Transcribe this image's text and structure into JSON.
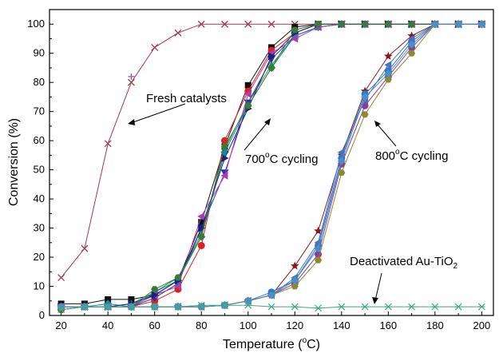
{
  "chart_data": {
    "type": "line",
    "xlabel": {
      "pre": "Temperature (",
      "sup": "o",
      "post": "C)"
    },
    "ylabel": "Conversion (%)",
    "xlim": [
      15,
      205
    ],
    "ylim": [
      0,
      105
    ],
    "xticks": [
      20,
      40,
      60,
      80,
      100,
      120,
      140,
      160,
      180,
      200
    ],
    "yticks": [
      0,
      10,
      20,
      30,
      40,
      50,
      60,
      70,
      80,
      90,
      100
    ],
    "grid": false,
    "legend": "none",
    "series": [
      {
        "color": "#a0384f",
        "marker": "x",
        "x": [
          20,
          30,
          40,
          50,
          60,
          70,
          80,
          90,
          100,
          110,
          120,
          130,
          140,
          150,
          160,
          170,
          180,
          190,
          200
        ],
        "values": [
          13,
          23,
          59,
          80,
          92,
          97,
          100,
          100,
          100,
          100,
          100,
          100,
          100,
          100,
          100,
          100,
          100,
          100,
          100
        ]
      },
      {
        "color": "#9b4f9b",
        "marker": "plus",
        "x": [
          50
        ],
        "values": [
          82
        ]
      },
      {
        "color": "#111111",
        "marker": "square",
        "x": [
          20,
          30,
          40,
          50,
          60,
          70,
          80,
          90,
          100,
          110,
          120,
          130,
          140,
          150,
          160,
          170,
          180,
          190,
          200
        ],
        "values": [
          4,
          4,
          5.5,
          5.5,
          7,
          12,
          32,
          58,
          79,
          92,
          99,
          100,
          100,
          100,
          100,
          100,
          100,
          100,
          100
        ]
      },
      {
        "color": "#e02020",
        "marker": "circle",
        "x": [
          20,
          30,
          40,
          50,
          60,
          70,
          80,
          90,
          100,
          110,
          120,
          130,
          140,
          150,
          160,
          170,
          180,
          190,
          200
        ],
        "values": [
          2,
          3,
          3,
          3,
          5,
          9,
          24,
          60,
          77,
          91,
          97,
          100,
          100,
          100,
          100,
          100,
          100,
          100,
          100
        ]
      },
      {
        "color": "#2a9a3a",
        "marker": "triangle-up",
        "x": [
          20,
          30,
          40,
          50,
          60,
          70,
          80,
          90,
          100,
          110,
          120,
          130,
          140,
          150,
          160,
          170,
          180,
          190,
          200
        ],
        "values": [
          3,
          3,
          3,
          4,
          8,
          13,
          28,
          57,
          73,
          86,
          96,
          99,
          100,
          100,
          100,
          100,
          100,
          100,
          100
        ]
      },
      {
        "color": "#2233aa",
        "marker": "triangle-down",
        "x": [
          20,
          30,
          40,
          50,
          60,
          70,
          80,
          90,
          100,
          110,
          120,
          130,
          140,
          150,
          160,
          170,
          180,
          190,
          200
        ],
        "values": [
          3,
          3,
          3,
          3,
          6,
          11,
          30,
          49,
          73,
          88,
          96,
          99,
          100,
          100,
          100,
          100,
          100,
          100,
          100
        ]
      },
      {
        "color": "#0a8fa5",
        "marker": "diamond",
        "x": [
          20,
          30,
          40,
          50,
          60,
          70,
          80,
          90,
          100,
          110,
          120,
          130,
          140,
          150,
          160,
          170,
          180,
          190,
          200
        ],
        "values": [
          3,
          3,
          4,
          3,
          8,
          12,
          27,
          56,
          72,
          85,
          96,
          99,
          100,
          100,
          100,
          100,
          100,
          100,
          100
        ]
      },
      {
        "color": "#b03ab0",
        "marker": "triangle-left",
        "x": [
          20,
          30,
          40,
          50,
          60,
          70,
          80,
          90,
          100,
          110,
          120,
          130,
          140,
          150,
          160,
          170,
          180,
          190,
          200
        ],
        "values": [
          3,
          3,
          3,
          3,
          7,
          10,
          34,
          48,
          76,
          90,
          95,
          99,
          100,
          100,
          100,
          100,
          100,
          100,
          100
        ]
      },
      {
        "color": "#1e1e80",
        "marker": "triangle-right",
        "x": [
          20,
          30,
          40,
          50,
          60,
          70,
          80,
          90,
          100,
          110,
          120,
          130,
          140,
          150,
          160,
          170,
          180,
          190,
          200
        ],
        "values": [
          3,
          3,
          3,
          4,
          7,
          12,
          30,
          54,
          71,
          89,
          97,
          100,
          100,
          100,
          100,
          100,
          100,
          100,
          100
        ]
      },
      {
        "color": "#3a7a3a",
        "marker": "hexagon",
        "x": [
          20,
          30,
          40,
          50,
          60,
          70,
          80,
          90,
          100,
          110,
          120,
          130,
          140,
          150,
          160,
          170,
          180,
          190,
          200
        ],
        "values": [
          2,
          3,
          3,
          3,
          9,
          13,
          27,
          58,
          72,
          85,
          98,
          100,
          100,
          100,
          100,
          100,
          100,
          100,
          100
        ]
      },
      {
        "color": "#8a1a1a",
        "marker": "star",
        "x": [
          20,
          30,
          40,
          50,
          60,
          70,
          80,
          90,
          100,
          110,
          120,
          130,
          140,
          150,
          160,
          170,
          180,
          190,
          200
        ],
        "values": [
          3,
          3,
          3,
          3,
          3,
          3,
          3,
          3.5,
          5,
          7,
          17,
          29,
          55,
          77,
          89,
          96,
          100,
          100,
          100
        ]
      },
      {
        "color": "#2a7acc",
        "marker": "circle",
        "x": [
          20,
          30,
          40,
          50,
          60,
          70,
          80,
          90,
          100,
          110,
          120,
          130,
          140,
          150,
          160,
          170,
          180,
          190,
          200
        ],
        "values": [
          3,
          3,
          3,
          3,
          3,
          3,
          3,
          3.5,
          5,
          8,
          12,
          24,
          54,
          76,
          84,
          94,
          100,
          100,
          100
        ]
      },
      {
        "color": "#8a3a9a",
        "marker": "circle",
        "x": [
          20,
          30,
          40,
          50,
          60,
          70,
          80,
          90,
          100,
          110,
          120,
          130,
          140,
          150,
          160,
          170,
          180,
          190,
          200
        ],
        "values": [
          3,
          3,
          3,
          3,
          3,
          3,
          3,
          3.5,
          5,
          7,
          11,
          21,
          52,
          72,
          82,
          92,
          100,
          100,
          100
        ]
      },
      {
        "color": "#4a70c0",
        "marker": "triangle-left",
        "x": [
          20,
          30,
          40,
          50,
          60,
          70,
          80,
          90,
          100,
          110,
          120,
          130,
          140,
          150,
          160,
          170,
          180,
          190,
          200
        ],
        "values": [
          3,
          3,
          3,
          3,
          3,
          3,
          3,
          3.5,
          5,
          7,
          13,
          25,
          56,
          74,
          86,
          95,
          100,
          100,
          100
        ]
      },
      {
        "color": "#8a8a30",
        "marker": "hexagon",
        "x": [
          20,
          30,
          40,
          50,
          60,
          70,
          80,
          90,
          100,
          110,
          120,
          130,
          140,
          150,
          160,
          170,
          180,
          190,
          200
        ],
        "values": [
          3,
          3,
          3,
          3,
          3,
          3,
          3,
          3.5,
          5,
          7,
          10,
          19,
          49,
          69,
          81,
          90,
          100,
          100,
          100
        ]
      },
      {
        "color": "#4a90c8",
        "marker": "diamond",
        "x": [
          20,
          30,
          40,
          50,
          60,
          70,
          80,
          90,
          100,
          110,
          120,
          130,
          140,
          150,
          160,
          170,
          180,
          190,
          200
        ],
        "values": [
          3,
          3,
          3,
          3,
          3,
          3,
          3,
          3.5,
          5,
          7,
          12,
          23,
          53,
          75,
          83,
          93,
          100,
          100,
          100
        ]
      },
      {
        "color": "#3aaa8a",
        "marker": "asterisk",
        "x": [
          20,
          30,
          40,
          50,
          60,
          70,
          80,
          90,
          100,
          110,
          120,
          130,
          140,
          150,
          160,
          170,
          180,
          190,
          200
        ],
        "values": [
          2,
          3,
          3,
          3,
          3,
          3,
          3.5,
          3.5,
          3.5,
          3,
          3,
          2.5,
          3,
          3,
          3,
          3,
          3,
          3,
          3
        ]
      }
    ],
    "annotations": [
      {
        "key": "fresh",
        "text": "Fresh catalysts"
      },
      {
        "key": "c700",
        "pre": "700",
        "sup": "o",
        "post": "C cycling"
      },
      {
        "key": "c800",
        "pre": "800",
        "sup": "o",
        "post": "C cycling"
      },
      {
        "key": "deact",
        "pre": "Deactivated Au-TiO",
        "sub": "2"
      }
    ]
  }
}
